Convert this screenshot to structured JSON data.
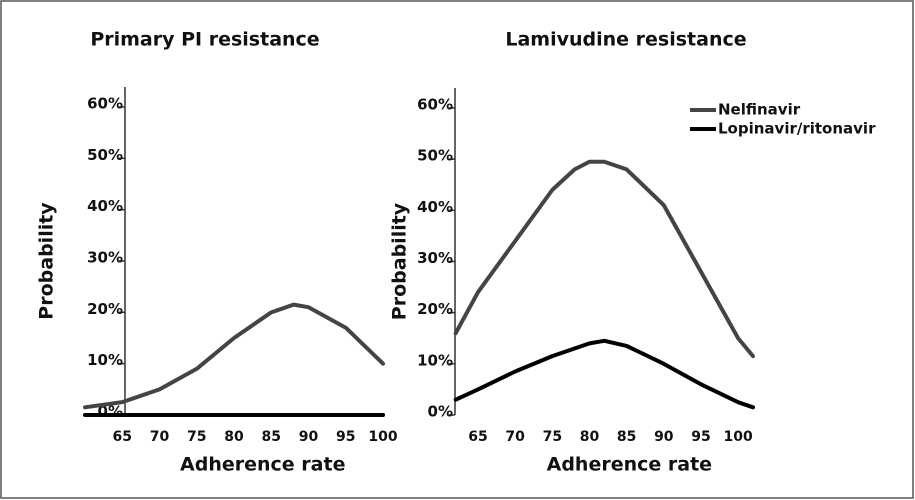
{
  "chart_data": [
    {
      "type": "line",
      "title": "Primary PI resistance",
      "xlabel": "Adherence rate",
      "ylabel": "Probability",
      "xlim": [
        60,
        101
      ],
      "xticks": [
        65,
        70,
        75,
        80,
        85,
        90,
        95,
        100
      ],
      "ylim": [
        0,
        60
      ],
      "yticks": [
        {
          "value": 0,
          "label": "0%"
        },
        {
          "value": 10,
          "label": "10%"
        },
        {
          "value": 20,
          "label": "20%"
        },
        {
          "value": 30,
          "label": "30%"
        },
        {
          "value": 40,
          "label": "40%"
        },
        {
          "value": 50,
          "label": "50%"
        },
        {
          "value": 60,
          "label": "60%"
        }
      ],
      "series": [
        {
          "name": "Nelfinavir",
          "color": "#444444",
          "x": [
            60,
            65,
            70,
            75,
            80,
            85,
            88,
            90,
            95,
            100
          ],
          "values": [
            1.5,
            2.5,
            5,
            9,
            15,
            20,
            21.5,
            21,
            17,
            10
          ]
        },
        {
          "name": "Lopinavir/ritonavir",
          "color": "#000000",
          "x": [
            60,
            100
          ],
          "values": [
            0,
            0
          ]
        }
      ]
    },
    {
      "type": "line",
      "title": "Lamivudine resistance",
      "xlabel": "Adherence rate",
      "ylabel": "Probability",
      "xlim": [
        62,
        102
      ],
      "xticks": [
        65,
        70,
        75,
        80,
        85,
        90,
        95,
        100
      ],
      "ylim": [
        0,
        60
      ],
      "yticks": [
        {
          "value": 0,
          "label": "0%"
        },
        {
          "value": 10,
          "label": "10%"
        },
        {
          "value": 20,
          "label": "20%"
        },
        {
          "value": 30,
          "label": "30%"
        },
        {
          "value": 40,
          "label": "40%"
        },
        {
          "value": 50,
          "label": "50%"
        },
        {
          "value": 60,
          "label": "60%"
        }
      ],
      "legend": "upper right",
      "series": [
        {
          "name": "Nelfinavir",
          "color": "#444444",
          "x": [
            62,
            65,
            70,
            75,
            78,
            80,
            82,
            85,
            90,
            95,
            100,
            102
          ],
          "values": [
            16,
            24,
            34,
            44,
            48,
            49.5,
            49.5,
            48,
            41,
            28,
            15,
            11.5
          ]
        },
        {
          "name": "Lopinavir/ritonavir",
          "color": "#000000",
          "x": [
            62,
            65,
            70,
            75,
            80,
            82,
            85,
            90,
            95,
            100,
            102
          ],
          "values": [
            3,
            5,
            8.5,
            11.5,
            14,
            14.5,
            13.5,
            10,
            6,
            2.5,
            1.5
          ]
        }
      ]
    }
  ]
}
